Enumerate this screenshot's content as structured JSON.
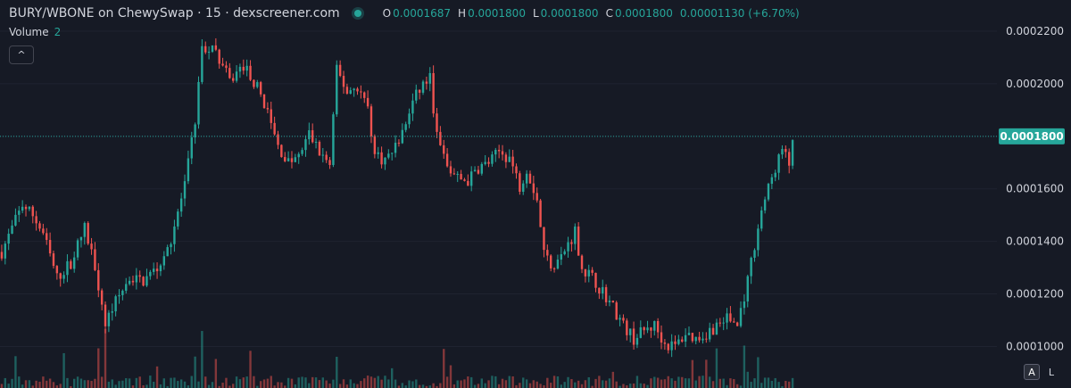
{
  "header": {
    "title": "BURY/WBONE on ChewySwap · 15 · dexscreener.com",
    "o_label": "O",
    "o_value": "0.0001687",
    "h_label": "H",
    "h_value": "0.0001800",
    "l_label": "L",
    "l_value": "0.0001800",
    "c_label": "C",
    "c_value": "0.0001800",
    "change": "0.00001130 (+6.70%)"
  },
  "volume": {
    "label": "Volume",
    "value": "2"
  },
  "buttons": {
    "collapse": "^",
    "auto": "A",
    "log": "L"
  },
  "colors": {
    "background": "#161a25",
    "up": "#26a69a",
    "down": "#ef5350",
    "text": "#d1d4dc",
    "last_price": "#26a69a"
  },
  "chart_data": {
    "type": "candlestick",
    "y_ticks": [
      "0.0001000",
      "0.0001200",
      "0.0001400",
      "0.0001600",
      "0.0001800",
      "0.0002000",
      "0.0002200"
    ],
    "ylim": [
      9.88e-05,
      0.0002217
    ],
    "last_price": "0.0001800",
    "path": [
      [
        0,
        0.000136
      ],
      [
        3,
        0.000145
      ],
      [
        6,
        0.000154
      ],
      [
        9,
        0.00015
      ],
      [
        12,
        0.000143
      ],
      [
        16,
        0.000126
      ],
      [
        20,
        0.000132
      ],
      [
        24,
        0.000145
      ],
      [
        27,
        0.000131
      ],
      [
        30,
        0.000109
      ],
      [
        33,
        0.000117
      ],
      [
        37,
        0.000126
      ],
      [
        41,
        0.000125
      ],
      [
        45,
        0.00013
      ],
      [
        49,
        0.000141
      ],
      [
        53,
        0.000161
      ],
      [
        56,
        0.000186
      ],
      [
        58,
        0.000214
      ],
      [
        62,
        0.000212
      ],
      [
        66,
        0.000201
      ],
      [
        70,
        0.000207
      ],
      [
        73,
        0.000201
      ],
      [
        76,
        0.000193
      ],
      [
        80,
        0.000176
      ],
      [
        83,
        0.00017
      ],
      [
        86,
        0.000172
      ],
      [
        89,
        0.000181
      ],
      [
        92,
        0.000174
      ],
      [
        95,
        0.000169
      ],
      [
        97,
        0.000205
      ],
      [
        100,
        0.000197
      ],
      [
        103,
        0.000199
      ],
      [
        106,
        0.000191
      ],
      [
        108,
        0.000173
      ],
      [
        111,
        0.000171
      ],
      [
        113,
        0.000174
      ],
      [
        116,
        0.000181
      ],
      [
        119,
        0.000193
      ],
      [
        122,
        0.0002
      ],
      [
        124,
        0.000202
      ],
      [
        126,
        0.00018
      ],
      [
        129,
        0.000168
      ],
      [
        132,
        0.000164
      ],
      [
        135,
        0.000163
      ],
      [
        138,
        0.000168
      ],
      [
        141,
        0.00017
      ],
      [
        144,
        0.000174
      ],
      [
        147,
        0.000172
      ],
      [
        150,
        0.000161
      ],
      [
        152,
        0.000168
      ],
      [
        155,
        0.000156
      ],
      [
        157,
        0.000136
      ],
      [
        159,
        0.000131
      ],
      [
        162,
        0.000134
      ],
      [
        166,
        0.000144
      ],
      [
        168,
        0.00013
      ],
      [
        171,
        0.000126
      ],
      [
        174,
        0.000121
      ],
      [
        177,
        0.000115
      ],
      [
        180,
        0.000108
      ],
      [
        183,
        0.000103
      ],
      [
        186,
        0.000106
      ],
      [
        189,
        0.000108
      ],
      [
        192,
        0.000101
      ],
      [
        195,
        0.0001
      ],
      [
        198,
        0.000105
      ],
      [
        201,
        0.000103
      ],
      [
        204,
        0.000105
      ],
      [
        207,
        0.000108
      ],
      [
        210,
        0.000111
      ],
      [
        213,
        0.000108
      ],
      [
        216,
        0.000125
      ],
      [
        218,
        0.000139
      ],
      [
        220,
        0.000152
      ],
      [
        222,
        0.00016
      ],
      [
        224,
        0.000168
      ],
      [
        226,
        0.000175
      ],
      [
        228,
        0.000169
      ],
      [
        229,
        0.00018
      ]
    ]
  }
}
